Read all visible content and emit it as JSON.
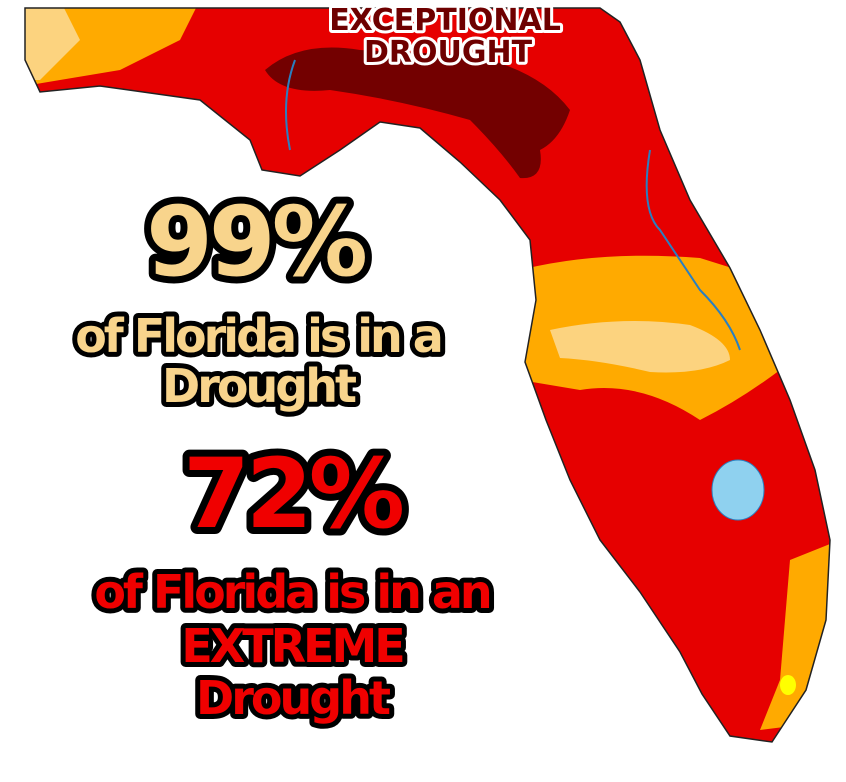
{
  "labels": {
    "exceptional": [
      "EXCEPTIONAL",
      "DROUGHT"
    ],
    "stat1": {
      "value": "99%",
      "caption": [
        "of Florida is in a",
        "Drought"
      ]
    },
    "stat2": {
      "value": "72%",
      "caption": [
        "of Florida is in an",
        "EXTREME",
        "Drought"
      ]
    }
  }
}
